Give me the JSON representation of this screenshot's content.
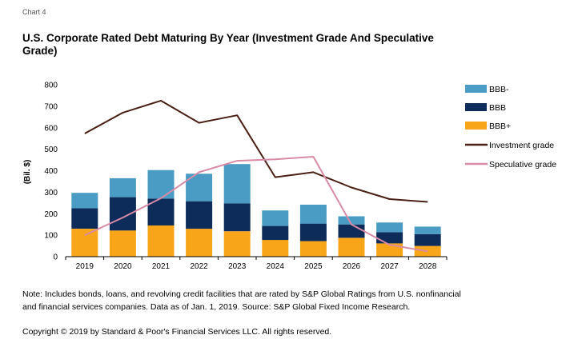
{
  "header": {
    "chart_number": "Chart 4",
    "title": "U.S. Corporate Rated Debt Maturing By Year (Investment Grade And Speculative Grade)"
  },
  "footer": {
    "note": "Note: Includes bonds, loans, and revolving credit facilities that are rated by S&P Global Ratings from U.S. nonfinancial and financial services companies. Data as of Jan. 1, 2019. Source: S&P Global Fixed Income Research.",
    "copyright": "Copyright © 2019 by Standard & Poor's Financial Services LLC. All rights reserved."
  },
  "colors": {
    "bbb_minus": "#4a9cc4",
    "bbb": "#0d2c5a",
    "bbb_plus": "#f9a51a",
    "investment_grade": "#4a1f14",
    "speculative_grade": "#d98aa7"
  },
  "chart_data": {
    "type": "bar",
    "title": "U.S. Corporate Rated Debt Maturing By Year (Investment Grade And Speculative Grade)",
    "xlabel": "",
    "ylabel": "(Bil. $)",
    "ylim": [
      0,
      800
    ],
    "yticks": [
      0,
      100,
      200,
      300,
      400,
      500,
      600,
      700,
      800
    ],
    "grid": false,
    "legend_position": "right",
    "categories": [
      "2019",
      "2020",
      "2021",
      "2022",
      "2023",
      "2024",
      "2025",
      "2026",
      "2027",
      "2028"
    ],
    "stacked_series": [
      {
        "name": "BBB+",
        "color": "#f9a51a",
        "values": [
          130,
          122,
          145,
          130,
          118,
          78,
          72,
          88,
          62,
          50
        ]
      },
      {
        "name": "BBB",
        "color": "#0d2c5a",
        "values": [
          95,
          155,
          125,
          128,
          130,
          65,
          82,
          62,
          52,
          55
        ]
      },
      {
        "name": "BBB-",
        "color": "#4a9cc4",
        "values": [
          72,
          88,
          133,
          128,
          183,
          72,
          88,
          38,
          45,
          35
        ]
      }
    ],
    "line_series": [
      {
        "name": "Investment grade",
        "color": "#4a1f14",
        "values": [
          573,
          670,
          726,
          623,
          658,
          370,
          393,
          322,
          268,
          255
        ]
      },
      {
        "name": "Speculative grade",
        "color": "#d98aa7",
        "values": [
          100,
          182,
          272,
          393,
          446,
          453,
          465,
          150,
          55,
          25
        ]
      }
    ],
    "legend": [
      "BBB-",
      "BBB",
      "BBB+",
      "Investment grade",
      "Speculative grade"
    ]
  }
}
